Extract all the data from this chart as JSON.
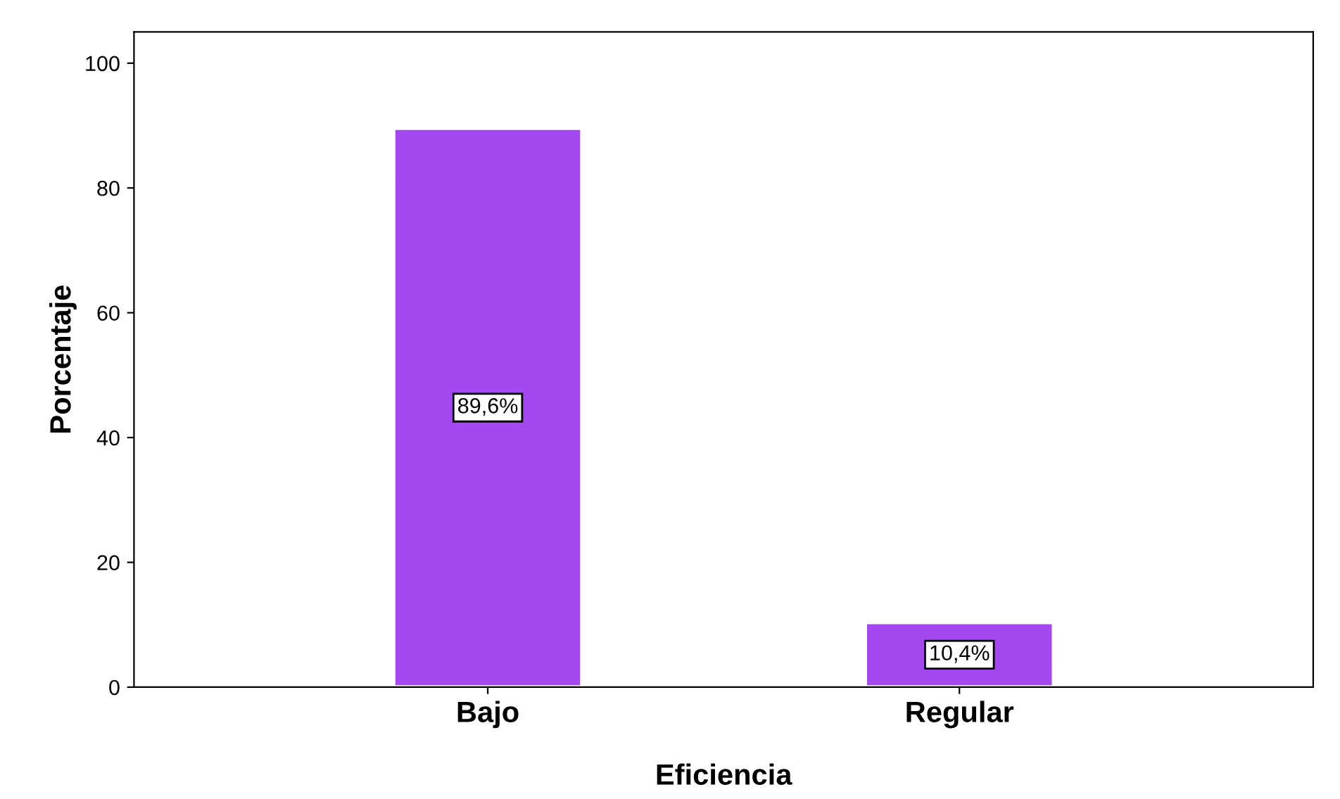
{
  "chart_data": {
    "type": "bar",
    "xlabel": "Eficiencia",
    "ylabel": "Porcentaje",
    "categories": [
      "Bajo",
      "Regular"
    ],
    "values": [
      89.6,
      10.4
    ],
    "value_labels": [
      "89,6%",
      "10,4%"
    ],
    "color": "#a449f0",
    "ylim": [
      0,
      105
    ],
    "yticks": [
      0,
      20,
      40,
      60,
      80,
      100
    ],
    "grid": false
  }
}
